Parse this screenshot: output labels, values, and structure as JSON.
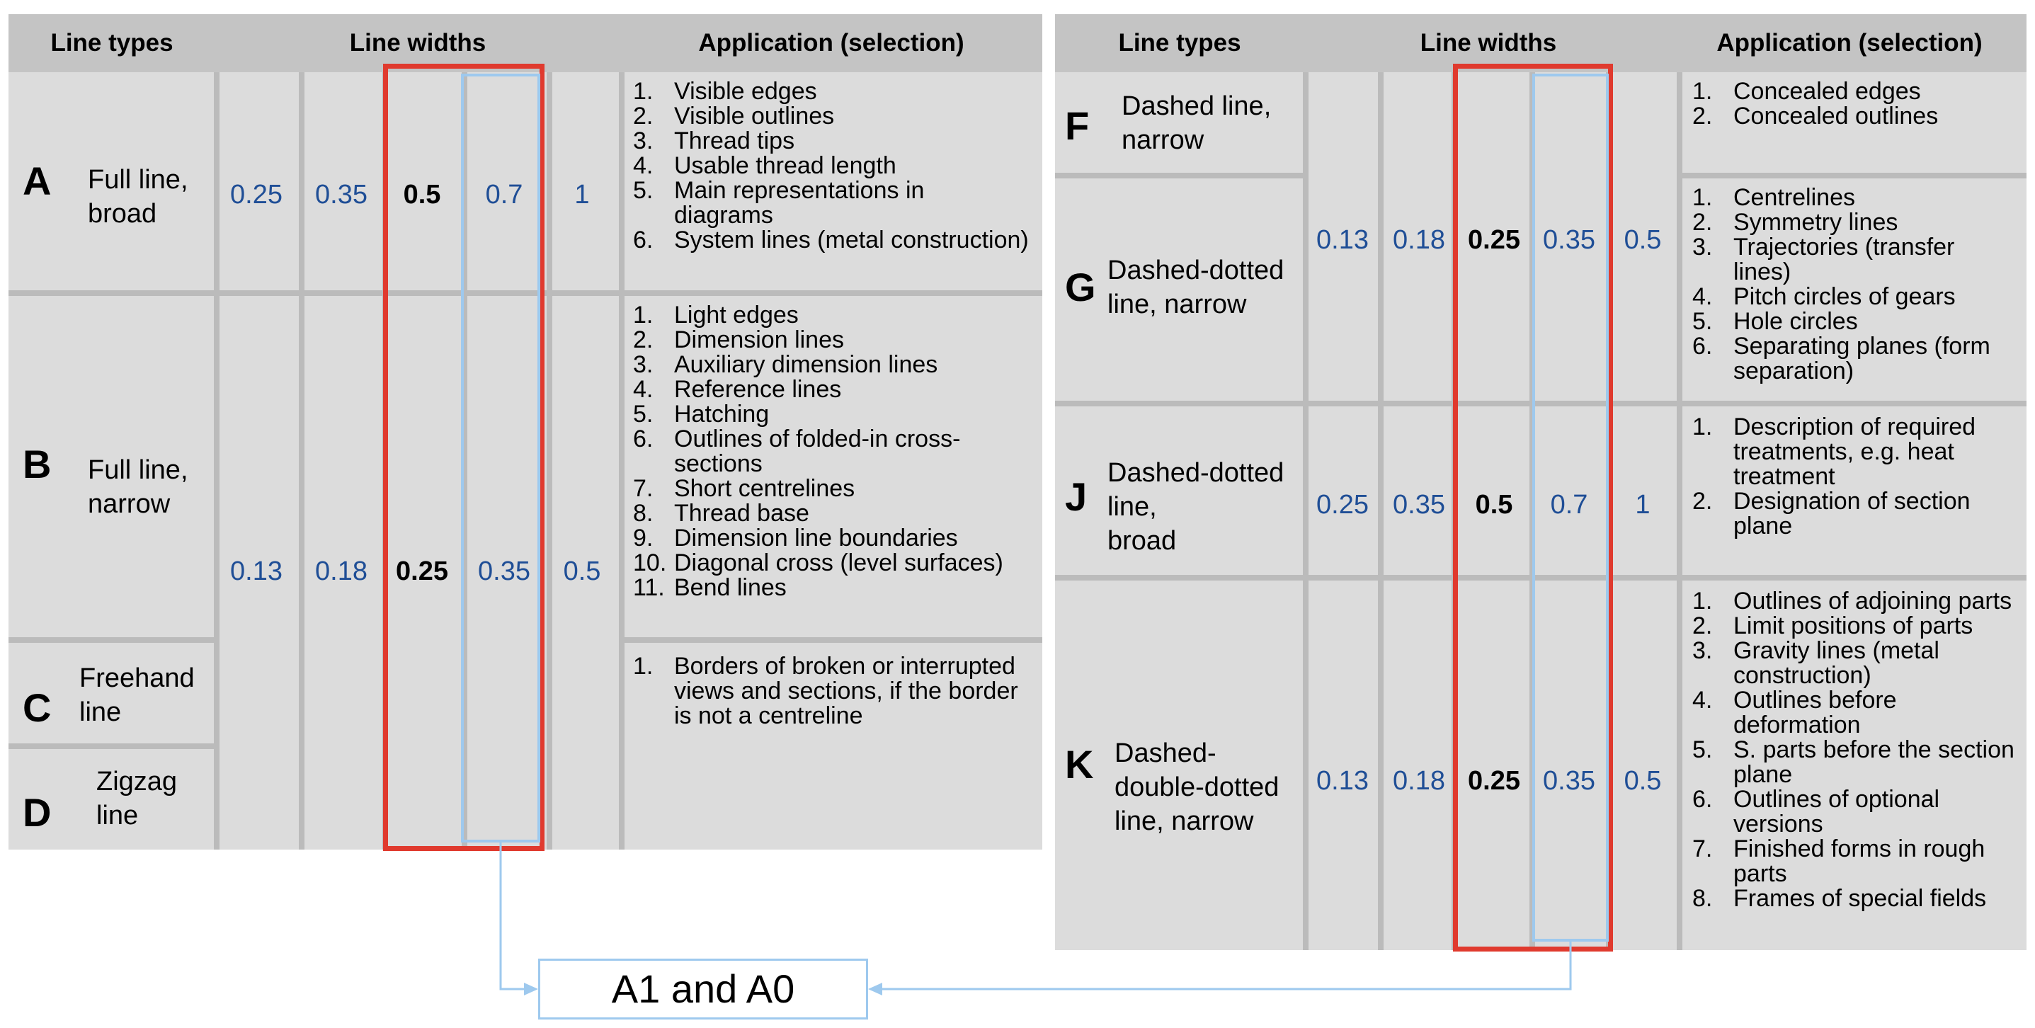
{
  "left_table": {
    "headers": [
      "Line types",
      "Line widths",
      "Application (selection)"
    ],
    "rows": [
      {
        "letter": "A",
        "type": "Full line,\nbroad",
        "widths": [
          "0.25",
          "0.35",
          "0.5",
          "0.7",
          "1"
        ],
        "applications": [
          "Visible edges",
          "Visible outlines",
          "Thread tips",
          "Usable thread length",
          "Main representations in diagrams",
          "System lines (metal construction)"
        ]
      },
      {
        "letter": "B",
        "type": "Full line,\nnarrow",
        "widths": [
          "0.13",
          "0.18",
          "0.25",
          "0.35",
          "0.5"
        ],
        "applications": [
          "Light edges",
          "Dimension lines",
          "Auxiliary dimension lines",
          "Reference lines",
          "Hatching",
          "Outlines of folded-in cross-sections",
          "Short centrelines",
          "Thread base",
          "Dimension line boundaries",
          "Diagonal cross (level surfaces)",
          "Bend lines"
        ]
      },
      {
        "letter": "C",
        "type": "Freehand\nline",
        "applications": [
          "Borders of broken or interrupted views and sections, if the border is not a centreline"
        ]
      },
      {
        "letter": "D",
        "type": "Zigzag\nline"
      }
    ]
  },
  "right_table": {
    "headers": [
      "Line types",
      "Line widths",
      "Application (selection)"
    ],
    "rows": [
      {
        "letter": "F",
        "type": "Dashed line,\nnarrow",
        "applications": [
          "Concealed edges",
          "Concealed outlines"
        ]
      },
      {
        "letter": "G",
        "type": "Dashed-dotted\nline, narrow",
        "widths": [
          "0.13",
          "0.18",
          "0.25",
          "0.35",
          "0.5"
        ],
        "applications": [
          "Centrelines",
          "Symmetry lines",
          "Trajectories (transfer lines)",
          "Pitch circles of gears",
          "Hole circles",
          "Separating planes (form separation)"
        ]
      },
      {
        "letter": "J",
        "type": "Dashed-dotted\nline,\nbroad",
        "widths": [
          "0.25",
          "0.35",
          "0.5",
          "0.7",
          "1"
        ],
        "applications": [
          "Description of required treatments, e.g. heat treatment",
          "Designation of section plane"
        ]
      },
      {
        "letter": "K",
        "type": "Dashed-\ndouble-dotted\nline, narrow",
        "widths": [
          "0.13",
          "0.18",
          "0.25",
          "0.35",
          "0.5"
        ],
        "applications": [
          "Outlines of adjoining parts",
          "Limit positions of parts",
          "Gravity lines (metal construction)",
          "Outlines before deformation",
          "S. parts before the section plane",
          "Outlines of optional versions",
          "Finished forms in rough parts",
          "Frames of special fields"
        ]
      }
    ]
  },
  "callout": {
    "label": "A1 and A0"
  },
  "colors": {
    "header_bg": "#c4c4c4",
    "cell_bg": "#dcdcdc",
    "width_text": "#1f4e96",
    "highlight_red": "#e03a2e",
    "highlight_blue": "#9ec9ee"
  }
}
